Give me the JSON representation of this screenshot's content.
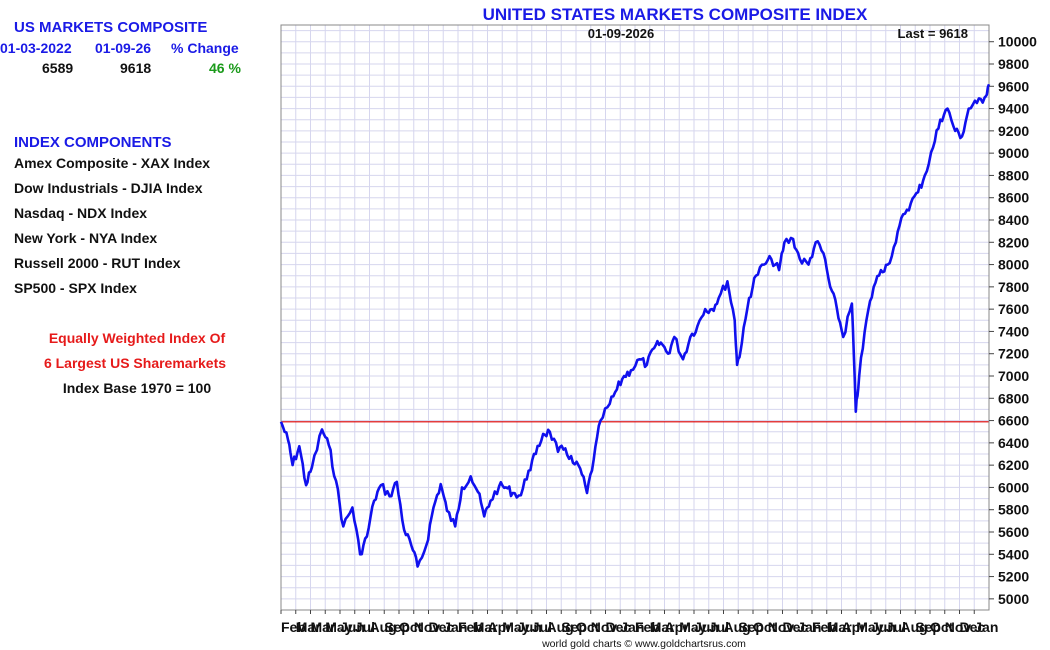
{
  "summary": {
    "title": "US MARKETS COMPOSITE",
    "col_start_label": "01-03-2022",
    "col_end_label": "01-09-26",
    "col_change_label": "% Change",
    "start_value": "6589",
    "end_value": "9618",
    "change_value": "46 %"
  },
  "components": {
    "title": "INDEX COMPONENTS",
    "items": [
      "Amex Composite - XAX Index",
      "Dow Industrials - DJIA Index",
      "Nasdaq - NDX Index",
      "New York - NYA Index",
      "Russell 2000 - RUT Index",
      "SP500 - SPX Index"
    ]
  },
  "notes": {
    "line1": "Equally Weighted Index Of",
    "line2": "6 Largest US Sharemarkets",
    "line3": "Index Base 1970 = 100"
  },
  "colors": {
    "line": "#1010ee",
    "reference": "#dd0000",
    "grid": "#d6d6ee"
  },
  "chart_data": {
    "type": "line",
    "title": "UNITED STATES MARKETS COMPOSITE INDEX",
    "date_label": "01-09-2026",
    "last_label": "Last = 9618",
    "footer": "world gold charts © www.goldchartsrus.com",
    "ylim": [
      4900,
      10150
    ],
    "yticks": [
      5000,
      5200,
      5400,
      5600,
      5800,
      6000,
      6200,
      6400,
      6600,
      6800,
      7000,
      7200,
      7400,
      7600,
      7800,
      8000,
      8200,
      8400,
      8600,
      8800,
      9000,
      9200,
      9400,
      9600,
      9800,
      10000
    ],
    "reference_value": 6589,
    "x_tick_labels": [
      "Feb",
      "Mar",
      "Mar",
      "May",
      "Jun",
      "Jul",
      "Aug",
      "Sep",
      "Oct",
      "Nov",
      "Dec",
      "Jan",
      "Feb",
      "Mar",
      "Apr",
      "May",
      "Jun",
      "Jul",
      "Aug",
      "Sep",
      "Oct",
      "Nov",
      "Dec",
      "Jan",
      "Feb",
      "Mar",
      "Apr",
      "May",
      "Jun",
      "Jul",
      "Aug",
      "Sep",
      "Oct",
      "Nov",
      "Dec",
      "Jan",
      "Feb",
      "Mar",
      "Apr",
      "May",
      "Jun",
      "Jul",
      "Aug",
      "Sep",
      "Oct",
      "Nov",
      "Dec",
      "Jan"
    ],
    "series": [
      {
        "name": "US Markets Composite",
        "dates": [
          "2022-01-03",
          "2022-01-18",
          "2022-01-27",
          "2022-02-10",
          "2022-02-24",
          "2022-03-08",
          "2022-03-29",
          "2022-04-12",
          "2022-04-27",
          "2022-05-12",
          "2022-05-31",
          "2022-06-16",
          "2022-06-30",
          "2022-07-15",
          "2022-07-29",
          "2022-08-16",
          "2022-08-31",
          "2022-09-15",
          "2022-09-30",
          "2022-10-13",
          "2022-10-31",
          "2022-11-15",
          "2022-11-30",
          "2022-12-13",
          "2022-12-30",
          "2023-01-13",
          "2023-01-31",
          "2023-02-15",
          "2023-02-28",
          "2023-03-13",
          "2023-03-31",
          "2023-04-14",
          "2023-04-28",
          "2023-05-15",
          "2023-05-31",
          "2023-06-15",
          "2023-06-30",
          "2023-07-14",
          "2023-07-31",
          "2023-08-15",
          "2023-08-31",
          "2023-09-15",
          "2023-09-29",
          "2023-10-13",
          "2023-10-27",
          "2023-11-15",
          "2023-11-30",
          "2023-12-15",
          "2023-12-29",
          "2024-01-16",
          "2024-01-31",
          "2024-02-15",
          "2024-02-29",
          "2024-03-15",
          "2024-03-28",
          "2024-04-15",
          "2024-04-30",
          "2024-05-15",
          "2024-05-31",
          "2024-06-14",
          "2024-06-28",
          "2024-07-16",
          "2024-07-31",
          "2024-08-05",
          "2024-08-15",
          "2024-08-30",
          "2024-09-13",
          "2024-09-30",
          "2024-10-15",
          "2024-10-31",
          "2024-11-11",
          "2024-11-29",
          "2024-12-13",
          "2024-12-31",
          "2025-01-15",
          "2025-01-31",
          "2025-02-14",
          "2025-02-28",
          "2025-03-13",
          "2025-03-31",
          "2025-04-08",
          "2025-04-15",
          "2025-04-30",
          "2025-05-15",
          "2025-05-30",
          "2025-06-13",
          "2025-06-30",
          "2025-07-15",
          "2025-07-31",
          "2025-08-15",
          "2025-08-29",
          "2025-09-15",
          "2025-09-30",
          "2025-10-15",
          "2025-10-31",
          "2025-11-14",
          "2025-11-28",
          "2025-12-15",
          "2025-12-31",
          "2026-01-09"
        ],
        "values": [
          6589,
          6420,
          6200,
          6370,
          6020,
          6180,
          6520,
          6380,
          6060,
          5650,
          5820,
          5400,
          5560,
          5880,
          6020,
          5920,
          6050,
          5620,
          5480,
          5290,
          5480,
          5820,
          6030,
          5790,
          5650,
          6000,
          6100,
          5960,
          5740,
          5880,
          6010,
          6000,
          5950,
          5930,
          6150,
          6300,
          6480,
          6500,
          6320,
          6350,
          6220,
          6170,
          5950,
          6250,
          6600,
          6750,
          6880,
          7000,
          7050,
          7150,
          7100,
          7250,
          7300,
          7200,
          7350,
          7150,
          7350,
          7450,
          7600,
          7600,
          7700,
          7850,
          7500,
          7100,
          7300,
          7700,
          7900,
          8000,
          8050,
          7950,
          8200,
          8230,
          8050,
          8000,
          8200,
          8100,
          7800,
          7600,
          7350,
          7650,
          6680,
          7000,
          7500,
          7800,
          7950,
          8000,
          8200,
          8450,
          8550,
          8650,
          8800,
          9050,
          9300,
          9400,
          9200,
          9150,
          9400,
          9450,
          9500,
          9618
        ]
      }
    ]
  }
}
